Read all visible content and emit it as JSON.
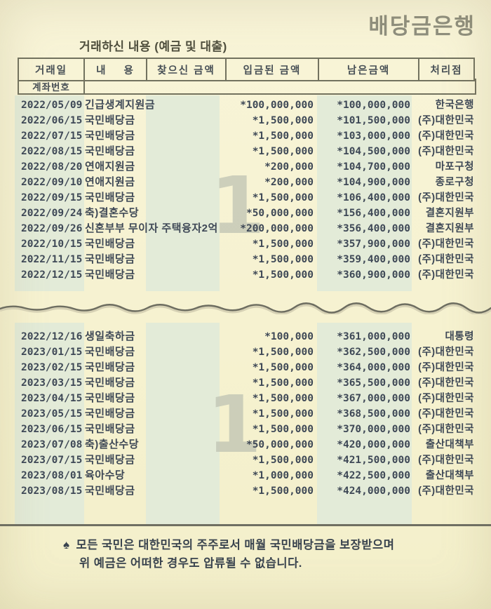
{
  "bank": {
    "title": "배당금은행"
  },
  "table": {
    "caption": "거래하신 내용 (예금 및 대출)",
    "headers": [
      "거래일",
      "내    용",
      "찾으신 금액",
      "입금된 금액",
      "남은금액",
      "처리점"
    ],
    "account_label": "계좌번호",
    "page_number": "1",
    "sections": [
      {
        "rows": [
          {
            "date": "2022/05/09",
            "desc": "긴급생계지원금",
            "withdrawal": "",
            "deposit": "*100,000,000",
            "balance": "*100,000,000",
            "branch": "한국은행"
          },
          {
            "date": "2022/06/15",
            "desc": "국민배당금",
            "withdrawal": "",
            "deposit": "*1,500,000",
            "balance": "*101,500,000",
            "branch": "(주)대한민국"
          },
          {
            "date": "2022/07/15",
            "desc": "국민배당금",
            "withdrawal": "",
            "deposit": "*1,500,000",
            "balance": "*103,000,000",
            "branch": "(주)대한민국"
          },
          {
            "date": "2022/08/15",
            "desc": "국민배당금",
            "withdrawal": "",
            "deposit": "*1,500,000",
            "balance": "*104,500,000",
            "branch": "(주)대한민국"
          },
          {
            "date": "2022/08/20",
            "desc": "연애지원금",
            "withdrawal": "",
            "deposit": "*200,000",
            "balance": "*104,700,000",
            "branch": "마포구청"
          },
          {
            "date": "2022/09/10",
            "desc": "연애지원금",
            "withdrawal": "",
            "deposit": "*200,000",
            "balance": "*104,900,000",
            "branch": "종로구청"
          },
          {
            "date": "2022/09/15",
            "desc": "국민배당금",
            "withdrawal": "",
            "deposit": "*1,500,000",
            "balance": "*106,400,000",
            "branch": "(주)대한민국"
          },
          {
            "date": "2022/09/24",
            "desc": "축)결혼수당",
            "withdrawal": "",
            "deposit": "*50,000,000",
            "balance": "*156,400,000",
            "branch": "결혼지원부"
          },
          {
            "date": "2022/09/26",
            "desc": "신혼부부 무이자 주택융자2억",
            "withdrawal": "",
            "deposit": "*200,000,000",
            "balance": "*356,400,000",
            "branch": "결혼지원부"
          },
          {
            "date": "2022/10/15",
            "desc": "국민배당금",
            "withdrawal": "",
            "deposit": "*1,500,000",
            "balance": "*357,900,000",
            "branch": "(주)대한민국"
          },
          {
            "date": "2022/11/15",
            "desc": "국민배당금",
            "withdrawal": "",
            "deposit": "*1,500,000",
            "balance": "*359,400,000",
            "branch": "(주)대한민국"
          },
          {
            "date": "2022/12/15",
            "desc": "국민배당금",
            "withdrawal": "",
            "deposit": "*1,500,000",
            "balance": "*360,900,000",
            "branch": "(주)대한민국"
          }
        ]
      },
      {
        "rows": [
          {
            "date": "2022/12/16",
            "desc": "생일축하금",
            "withdrawal": "",
            "deposit": "*100,000",
            "balance": "*361,000,000",
            "branch": "대통령"
          },
          {
            "date": "2023/01/15",
            "desc": "국민배당금",
            "withdrawal": "",
            "deposit": "*1,500,000",
            "balance": "*362,500,000",
            "branch": "(주)대한민국"
          },
          {
            "date": "2023/02/15",
            "desc": "국민배당금",
            "withdrawal": "",
            "deposit": "*1,500,000",
            "balance": "*364,000,000",
            "branch": "(주)대한민국"
          },
          {
            "date": "2023/03/15",
            "desc": "국민배당금",
            "withdrawal": "",
            "deposit": "*1,500,000",
            "balance": "*365,500,000",
            "branch": "(주)대한민국"
          },
          {
            "date": "2023/04/15",
            "desc": "국민배당금",
            "withdrawal": "",
            "deposit": "*1,500,000",
            "balance": "*367,000,000",
            "branch": "(주)대한민국"
          },
          {
            "date": "2023/05/15",
            "desc": "국민배당금",
            "withdrawal": "",
            "deposit": "*1,500,000",
            "balance": "*368,500,000",
            "branch": "(주)대한민국"
          },
          {
            "date": "2023/06/15",
            "desc": "국민배당금",
            "withdrawal": "",
            "deposit": "*1,500,000",
            "balance": "*370,000,000",
            "branch": "(주)대한민국"
          },
          {
            "date": "2023/07/08",
            "desc": "축)출산수당",
            "withdrawal": "",
            "deposit": "*50,000,000",
            "balance": "*420,000,000",
            "branch": "출산대책부"
          },
          {
            "date": "2023/07/15",
            "desc": "국민배당금",
            "withdrawal": "",
            "deposit": "*1,500,000",
            "balance": "*421,500,000",
            "branch": "(주)대한민국"
          },
          {
            "date": "2023/08/01",
            "desc": "육아수당",
            "withdrawal": "",
            "deposit": "*1,000,000",
            "balance": "*422,500,000",
            "branch": "출산대책부"
          },
          {
            "date": "2023/08/15",
            "desc": "국민배당금",
            "withdrawal": "",
            "deposit": "*1,500,000",
            "balance": "*424,000,000",
            "branch": "(주)대한민국"
          }
        ]
      }
    ]
  },
  "footer": {
    "note_icon": "♠",
    "note_line1": "모든 국민은 대한민국의 주주로서 매월 국민배당금을 보장받으며",
    "note_line2": "위 예금은 어떠한 경우도 압류될 수 없습니다."
  },
  "colors": {
    "paper": "#f6f2d0",
    "stripe_green": "#e3ebd8",
    "ink": "#3e4856",
    "rule_gray": "#72725f",
    "title_gray": "#8e8e7d",
    "watermark_gray": "#bfc3b3"
  }
}
